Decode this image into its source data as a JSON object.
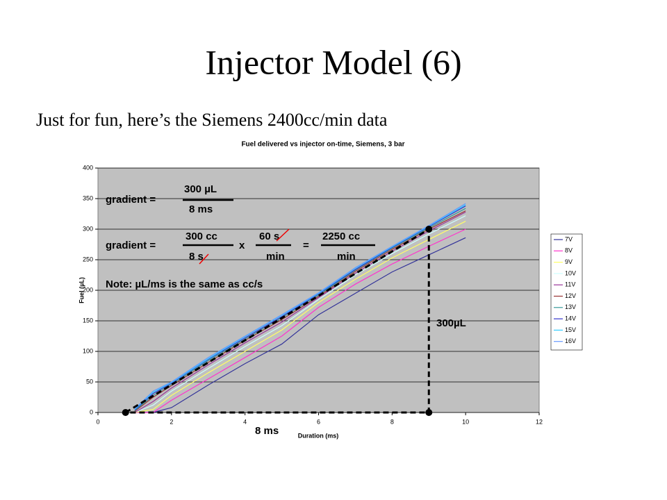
{
  "slide_title": "Injector Model (6)",
  "slide_subtitle": "Just for fun, here’s the Siemens 2400cc/min data",
  "chart_data": {
    "type": "line",
    "title": "Fuel delivered vs injector on-time, Siemens, 3 bar",
    "x_label": "Duration (ms)",
    "y_label": "Fuel (µL)",
    "x": [
      1,
      1.5,
      2,
      3,
      4,
      5,
      6,
      7,
      8,
      9,
      10
    ],
    "series": [
      {
        "name": "7V",
        "color": "#333399",
        "values": [
          0,
          0,
          8,
          45,
          80,
          112,
          160,
          195,
          230,
          258,
          286
        ]
      },
      {
        "name": "8V",
        "color": "#ff33cc",
        "values": [
          0,
          0,
          20,
          55,
          90,
          125,
          172,
          210,
          243,
          272,
          300
        ]
      },
      {
        "name": "9V",
        "color": "#ffff66",
        "values": [
          0,
          5,
          28,
          65,
          100,
          135,
          180,
          218,
          253,
          283,
          313
        ]
      },
      {
        "name": "10V",
        "color": "#ccffff",
        "values": [
          0,
          12,
          35,
          72,
          108,
          142,
          185,
          225,
          260,
          292,
          322
        ]
      },
      {
        "name": "11V",
        "color": "#993399",
        "values": [
          0,
          18,
          40,
          78,
          114,
          148,
          188,
          228,
          264,
          297,
          328
        ]
      },
      {
        "name": "12V",
        "color": "#993333",
        "values": [
          2,
          25,
          44,
          82,
          118,
          152,
          190,
          231,
          267,
          300,
          330
        ]
      },
      {
        "name": "13V",
        "color": "#339999",
        "values": [
          3,
          28,
          46,
          85,
          120,
          155,
          192,
          233,
          269,
          302,
          334
        ]
      },
      {
        "name": "14V",
        "color": "#3333cc",
        "values": [
          4,
          31,
          48,
          87,
          122,
          157,
          194,
          234,
          270,
          304,
          338
        ]
      },
      {
        "name": "15V",
        "color": "#33ccff",
        "values": [
          5,
          33,
          49,
          88,
          124,
          159,
          195,
          236,
          271,
          305,
          340
        ]
      },
      {
        "name": "16V",
        "color": "#6699ff",
        "values": [
          6,
          35,
          50,
          90,
          125,
          160,
          196,
          237,
          272,
          306,
          342
        ]
      }
    ],
    "xlim": [
      0,
      12
    ],
    "xticks": [
      0,
      2,
      4,
      6,
      8,
      10,
      12
    ],
    "ylim": [
      0,
      400
    ],
    "yticks": [
      0,
      50,
      100,
      150,
      200,
      250,
      300,
      350,
      400
    ],
    "grid": true,
    "legend": "right",
    "fit_triangle": {
      "x": [
        0.75,
        9,
        9
      ],
      "y": [
        0,
        300,
        0
      ]
    },
    "annotations": [
      "gradient =",
      "300 µL",
      "8 ms",
      "gradient =",
      "300 cc",
      "8 s",
      "x",
      "60 s",
      "min",
      "=",
      "2250 cc",
      "min",
      "Note: µL/ms is the same as cc/s",
      "300µL",
      "8 ms"
    ]
  }
}
